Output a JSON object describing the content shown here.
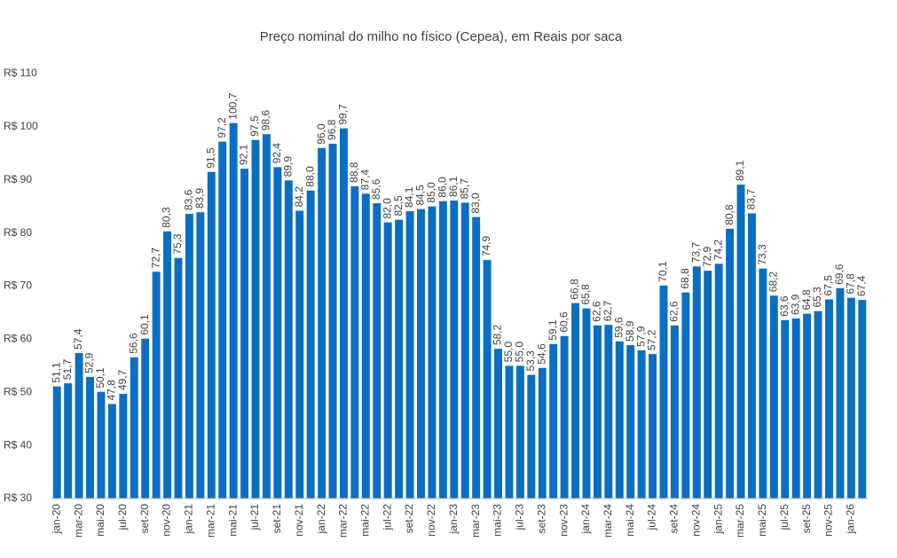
{
  "chart_data": {
    "type": "bar",
    "title": "Preço nominal do milho no físico (Cepea), em Reais por saca",
    "color": "#0a6fc2",
    "categories": [
      "jan-20",
      null,
      "mar-20",
      null,
      "mai-20",
      null,
      "jul-20",
      null,
      "set-20",
      null,
      "nov-20",
      null,
      "jan-21",
      null,
      "mar-21",
      null,
      "mai-21",
      null,
      "jul-21",
      null,
      "set-21",
      null,
      "nov-21",
      null,
      "jan-22",
      null,
      "mar-22",
      null,
      "mai-22",
      null,
      "jul-22",
      null,
      "set-22",
      null,
      "nov-22",
      null,
      "jan-23",
      null,
      "mar-23",
      null,
      "mai-23",
      null,
      "jul-23",
      null,
      "set-23",
      null,
      "nov-23",
      null,
      "jan-24",
      null,
      "mar-24",
      null,
      "mai-24",
      null,
      "jul-24",
      null,
      "set-24",
      null,
      "nov-24",
      null,
      "jan-25",
      null,
      "mar-25",
      null,
      "mai-25",
      null,
      "jul-25",
      null,
      "set-25",
      null,
      "nov-25",
      null,
      "jan-26",
      null
    ],
    "values": [
      51.1,
      51.7,
      57.4,
      52.9,
      50.1,
      47.8,
      49.7,
      56.6,
      60.1,
      72.7,
      80.3,
      75.3,
      83.6,
      83.9,
      91.5,
      97.2,
      100.7,
      92.1,
      97.5,
      98.6,
      92.4,
      89.9,
      84.2,
      88.0,
      96.0,
      96.8,
      99.7,
      88.8,
      87.4,
      85.6,
      82.0,
      82.5,
      84.1,
      84.5,
      85.0,
      86.0,
      86.1,
      85.7,
      83.0,
      74.9,
      58.2,
      55.0,
      55.0,
      53.3,
      54.6,
      59.1,
      60.6,
      66.8,
      65.8,
      62.6,
      62.7,
      59.6,
      58.9,
      57.9,
      57.2,
      70.1,
      62.6,
      68.8,
      73.7,
      72.9,
      74.2,
      80.8,
      89.1,
      83.7,
      73.3,
      68.2,
      63.6,
      63.9,
      64.8,
      65.3,
      67.5,
      69.6,
      67.8,
      67.4
    ],
    "value_labels": [
      "51,1",
      "51,7",
      "57,4",
      "52,9",
      "50,1",
      "47,8",
      "49,7",
      "56,6",
      "60,1",
      "72,7",
      "80,3",
      "75,3",
      "83,6",
      "83,9",
      "91,5",
      "97,2",
      "100,7",
      "92,1",
      "97,5",
      "98,6",
      "92,4",
      "89,9",
      "84,2",
      "88,0",
      "96,0",
      "96,8",
      "99,7",
      "88,8",
      "87,4",
      "85,6",
      "82,0",
      "82,5",
      "84,1",
      "84,5",
      "85,0",
      "86,0",
      "86,1",
      "85,7",
      "83,0",
      "74,9",
      "58,2",
      "55,0",
      "55,0",
      "53,3",
      "54,6",
      "59,1",
      "60,6",
      "66,8",
      "65,8",
      "62,6",
      "62,7",
      "59,6",
      "58,9",
      "57,9",
      "57,2",
      "70,1",
      "62,6",
      "68,8",
      "73,7",
      "72,9",
      "74,2",
      "80,8",
      "89,1",
      "83,7",
      "73,3",
      "68,2",
      "63,6",
      "63,9",
      "64,8",
      "65,3",
      "67,5",
      "69,6",
      "67,8",
      "67,4"
    ],
    "ylim": [
      30,
      110
    ],
    "yticks": [
      {
        "value": 30,
        "label": "R$ 30"
      },
      {
        "value": 40,
        "label": "R$ 40"
      },
      {
        "value": 50,
        "label": "R$ 50"
      },
      {
        "value": 60,
        "label": "R$ 60"
      },
      {
        "value": 70,
        "label": "R$ 70"
      },
      {
        "value": 80,
        "label": "R$ 80"
      },
      {
        "value": 90,
        "label": "R$ 90"
      },
      {
        "value": 100,
        "label": "R$ 100"
      },
      {
        "value": 110,
        "label": "R$ 110"
      }
    ],
    "grid": false
  }
}
